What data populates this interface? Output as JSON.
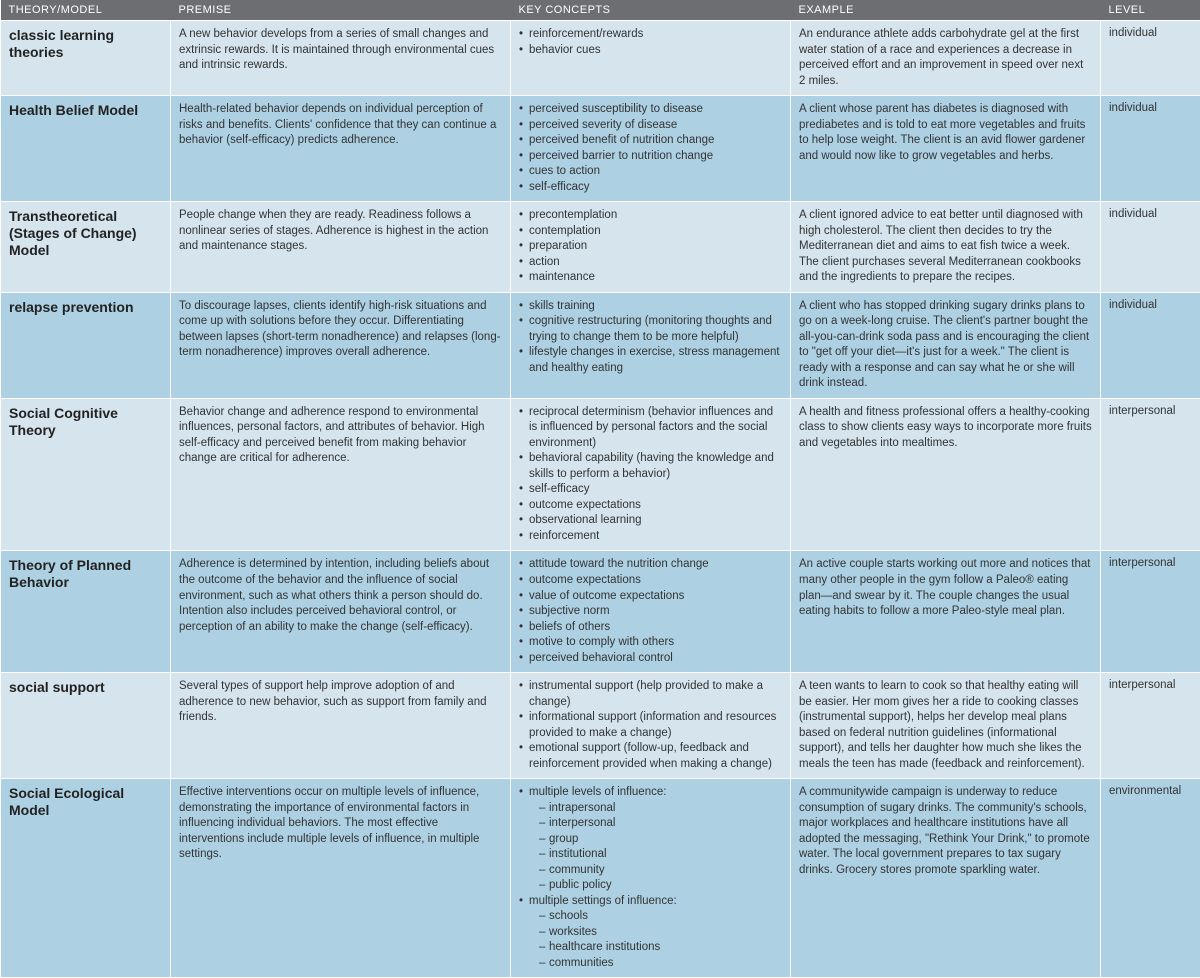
{
  "headers": {
    "theory": "THEORY/MODEL",
    "premise": "PREMISE",
    "key": "KEY CONCEPTS",
    "example": "EXAMPLE",
    "level": "LEVEL"
  },
  "colors": {
    "header_bg": "#6d6e71",
    "row_light": "#d5e4ed",
    "row_dark": "#add1e3"
  },
  "rows": [
    {
      "theory": "classic learning theories",
      "premise": "A new behavior develops from a series of small changes and extrinsic rewards. It is maintained through environmental cues and intrinsic rewards.",
      "concepts": [
        "reinforcement/rewards",
        "behavior cues"
      ],
      "example": "An endurance athlete adds carbohydrate gel at the first water station of a race and experiences a decrease in perceived effort and an improvement in speed over next 2 miles.",
      "level": "individual"
    },
    {
      "theory": "Health Belief Model",
      "premise": "Health-related behavior depends on individual perception of risks and benefits. Clients' confidence that they can continue a behavior (self-efficacy) predicts adherence.",
      "concepts": [
        "perceived susceptibility to disease",
        "perceived severity of disease",
        "perceived benefit of nutrition change",
        "perceived barrier to nutrition change",
        "cues to action",
        "self-efficacy"
      ],
      "example": "A client whose parent has diabetes is diagnosed with prediabetes and is told to eat more vegetables and fruits to help lose weight. The client is an avid flower gardener and would now like to grow vegetables and herbs.",
      "level": "individual"
    },
    {
      "theory": "Transtheoretical (Stages of Change) Model",
      "premise": "People change when they are ready. Readiness follows a nonlinear series of stages. Adherence is highest in the action and maintenance stages.",
      "concepts": [
        "precontemplation",
        "contemplation",
        "preparation",
        "action",
        "maintenance"
      ],
      "example": "A client ignored advice to eat better until diagnosed with high cholesterol. The client then decides to try the Mediterranean diet and aims to eat fish twice a week. The client purchases several Mediterranean cookbooks and the ingredients to prepare the recipes.",
      "level": "individual"
    },
    {
      "theory": "relapse prevention",
      "premise": "To discourage lapses, clients identify high-risk situations and come up with solutions before they occur. Differentiating between lapses (short-term nonadherence) and relapses (long-term nonadherence) improves overall adherence.",
      "concepts": [
        "skills training",
        "cognitive restructuring (monitoring thoughts and trying to change them to be more helpful)",
        "lifestyle changes in exercise, stress management and healthy eating"
      ],
      "example": "A client who has stopped drinking sugary drinks plans to go on a week-long cruise. The client's partner bought the all-you-can-drink soda pass and is encouraging the client to \"get off your diet—it's just for a week.\" The client is ready with a response and can say what he or she will drink instead.",
      "level": "individual"
    },
    {
      "theory": "Social Cognitive Theory",
      "premise": "Behavior change and adherence respond to environmental influences, personal factors, and attributes of behavior. High self-efficacy and perceived benefit from making behavior change are critical for adherence.",
      "concepts": [
        "reciprocal determinism (behavior influences and is influenced by personal factors and the social environment)",
        "behavioral capability (having the knowledge and skills to perform a behavior)",
        "self-efficacy",
        "outcome expectations",
        "observational learning",
        "reinforcement"
      ],
      "example": "A health and fitness professional offers a healthy-cooking class to show clients easy ways to incorporate more fruits and vegetables into mealtimes.",
      "level": "interpersonal"
    },
    {
      "theory": "Theory of Planned Behavior",
      "premise": "Adherence is determined by intention, including beliefs about the outcome of the behavior and the influence of social environment, such as what others think a person should do. Intention also includes perceived behavioral control, or perception of an ability to make the change (self-efficacy).",
      "concepts": [
        "attitude toward the nutrition change",
        "outcome expectations",
        "value of outcome expectations",
        "subjective norm",
        "beliefs of others",
        "motive to comply with others",
        "perceived behavioral control"
      ],
      "example": "An active couple starts working out more and notices that many other people in the gym follow a Paleo® eating plan—and swear by it. The couple changes the usual eating habits to follow a more Paleo-style meal plan.",
      "level": "interpersonal"
    },
    {
      "theory": "social support",
      "premise": "Several types of support help improve adoption of and adherence to new behavior, such as support from family and friends.",
      "concepts": [
        "instrumental support (help provided to make a change)",
        "informational support (information and resources provided to make a change)",
        "emotional support (follow-up, feedback and reinforcement provided when making a change)"
      ],
      "example": "A teen wants to learn to cook so that healthy eating will be easier. Her mom gives her a ride to cooking classes (instrumental support), helps her develop meal plans based on federal nutrition guidelines (informational support), and tells her daughter how much she likes the meals the teen has made (feedback and reinforcement).",
      "level": "interpersonal"
    },
    {
      "theory": "Social Ecological Model",
      "premise": "Effective interventions occur on multiple levels of influence, demonstrating the importance of environmental factors in influencing individual behaviors. The most effective interventions include multiple levels of influence, in multiple settings.",
      "concepts_nested": [
        {
          "label": "multiple levels of influence:",
          "sub": [
            "intrapersonal",
            "interpersonal",
            "group",
            "institutional",
            "community",
            "public policy"
          ]
        },
        {
          "label": "multiple settings of influence:",
          "sub": [
            "schools",
            "worksites",
            "healthcare institutions",
            "communities"
          ]
        }
      ],
      "example": "A communitywide campaign is underway to reduce consumption of sugary drinks. The community's schools, major workplaces and healthcare institutions have all adopted the messaging, \"Rethink Your Drink,\" to promote water. The local government prepares to tax sugary drinks. Grocery stores promote sparkling water.",
      "level": "environmental"
    }
  ]
}
